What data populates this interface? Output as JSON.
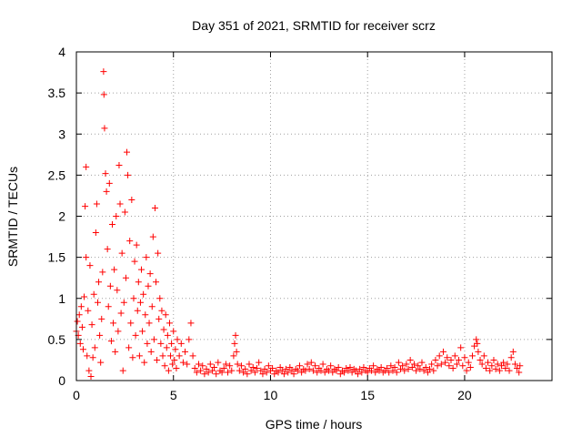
{
  "chart_data": {
    "type": "scatter",
    "title": "Day 351 of 2021, SRMTID for receiver scrz",
    "xlabel": "GPS time / hours",
    "ylabel": "SRMTID / TECUs",
    "xlim": [
      0,
      24.5
    ],
    "ylim": [
      0,
      4
    ],
    "grid": true,
    "marker": "+",
    "color": "#ff0000",
    "xticks": [
      0,
      5,
      10,
      15,
      20
    ],
    "xtick_labels": [
      "0",
      "5",
      "10",
      "15",
      "20"
    ],
    "yticks": [
      0,
      0.5,
      1,
      1.5,
      2,
      2.5,
      3,
      3.5,
      4
    ],
    "ytick_labels": [
      "0",
      "0.5",
      "1",
      "1.5",
      "2",
      "2.5",
      "3",
      "3.5",
      "4"
    ],
    "series": [
      {
        "name": "SRMTID",
        "points": [
          [
            0.0,
            0.6
          ],
          [
            0.05,
            0.72
          ],
          [
            0.1,
            0.55
          ],
          [
            0.15,
            0.8
          ],
          [
            0.2,
            0.45
          ],
          [
            0.25,
            0.9
          ],
          [
            0.3,
            0.65
          ],
          [
            0.35,
            0.38
          ],
          [
            0.4,
            1.02
          ],
          [
            0.45,
            2.12
          ],
          [
            0.5,
            2.6
          ],
          [
            0.5,
            1.5
          ],
          [
            0.55,
            0.3
          ],
          [
            0.6,
            0.85
          ],
          [
            0.65,
            0.12
          ],
          [
            0.7,
            1.4
          ],
          [
            0.75,
            0.05
          ],
          [
            0.8,
            0.68
          ],
          [
            0.85,
            0.28
          ],
          [
            0.9,
            1.05
          ],
          [
            0.95,
            0.4
          ],
          [
            1.0,
            1.8
          ],
          [
            1.05,
            2.15
          ],
          [
            1.1,
            0.95
          ],
          [
            1.15,
            1.2
          ],
          [
            1.2,
            0.55
          ],
          [
            1.25,
            0.22
          ],
          [
            1.3,
            0.75
          ],
          [
            1.35,
            1.32
          ],
          [
            1.4,
            3.76
          ],
          [
            1.42,
            3.48
          ],
          [
            1.45,
            3.07
          ],
          [
            1.5,
            2.52
          ],
          [
            1.55,
            2.3
          ],
          [
            1.6,
            1.6
          ],
          [
            1.65,
            0.9
          ],
          [
            1.7,
            2.4
          ],
          [
            1.75,
            1.15
          ],
          [
            1.8,
            0.48
          ],
          [
            1.85,
            1.9
          ],
          [
            1.9,
            0.7
          ],
          [
            1.95,
            1.35
          ],
          [
            2.0,
            0.35
          ],
          [
            2.05,
            2.0
          ],
          [
            2.1,
            1.1
          ],
          [
            2.15,
            0.6
          ],
          [
            2.2,
            2.62
          ],
          [
            2.25,
            2.15
          ],
          [
            2.3,
            0.82
          ],
          [
            2.35,
            1.55
          ],
          [
            2.4,
            0.12
          ],
          [
            2.45,
            0.95
          ],
          [
            2.5,
            2.05
          ],
          [
            2.55,
            1.25
          ],
          [
            2.6,
            2.78
          ],
          [
            2.65,
            2.5
          ],
          [
            2.7,
            0.4
          ],
          [
            2.75,
            1.7
          ],
          [
            2.8,
            0.7
          ],
          [
            2.85,
            2.2
          ],
          [
            2.9,
            0.28
          ],
          [
            2.95,
            1.0
          ],
          [
            3.0,
            1.45
          ],
          [
            3.05,
            0.55
          ],
          [
            3.1,
            1.65
          ],
          [
            3.15,
            0.85
          ],
          [
            3.2,
            1.2
          ],
          [
            3.25,
            0.3
          ],
          [
            3.3,
            0.95
          ],
          [
            3.35,
            1.35
          ],
          [
            3.4,
            0.6
          ],
          [
            3.45,
            1.05
          ],
          [
            3.5,
            0.22
          ],
          [
            3.55,
            0.8
          ],
          [
            3.6,
            1.5
          ],
          [
            3.65,
            0.45
          ],
          [
            3.7,
            1.15
          ],
          [
            3.75,
            0.7
          ],
          [
            3.8,
            1.3
          ],
          [
            3.85,
            0.35
          ],
          [
            3.9,
            0.9
          ],
          [
            3.95,
            1.75
          ],
          [
            4.0,
            0.5
          ],
          [
            4.05,
            2.1
          ],
          [
            4.1,
            1.2
          ],
          [
            4.15,
            0.25
          ],
          [
            4.2,
            1.55
          ],
          [
            4.25,
            0.75
          ],
          [
            4.3,
            1.0
          ],
          [
            4.35,
            0.45
          ],
          [
            4.4,
            0.85
          ],
          [
            4.45,
            0.3
          ],
          [
            4.5,
            0.62
          ],
          [
            4.55,
            0.18
          ],
          [
            4.6,
            0.8
          ],
          [
            4.65,
            0.4
          ],
          [
            4.7,
            0.55
          ],
          [
            4.75,
            0.12
          ],
          [
            4.8,
            0.7
          ],
          [
            4.85,
            0.3
          ],
          [
            4.9,
            0.45
          ],
          [
            4.95,
            0.2
          ],
          [
            5.0,
            0.6
          ],
          [
            5.05,
            0.25
          ],
          [
            5.1,
            0.38
          ],
          [
            5.15,
            0.15
          ],
          [
            5.2,
            0.5
          ],
          [
            5.3,
            0.3
          ],
          [
            5.4,
            0.45
          ],
          [
            5.5,
            0.22
          ],
          [
            5.6,
            0.35
          ],
          [
            5.7,
            0.2
          ],
          [
            5.8,
            0.5
          ],
          [
            5.9,
            0.7
          ],
          [
            6.0,
            0.3
          ],
          [
            6.1,
            0.15
          ],
          [
            6.2,
            0.1
          ],
          [
            6.3,
            0.2
          ],
          [
            6.4,
            0.12
          ],
          [
            6.5,
            0.18
          ],
          [
            6.6,
            0.08
          ],
          [
            6.7,
            0.14
          ],
          [
            6.8,
            0.1
          ],
          [
            6.9,
            0.2
          ],
          [
            7.0,
            0.12
          ],
          [
            7.1,
            0.16
          ],
          [
            7.2,
            0.08
          ],
          [
            7.3,
            0.22
          ],
          [
            7.4,
            0.12
          ],
          [
            7.5,
            0.1
          ],
          [
            7.6,
            0.15
          ],
          [
            7.7,
            0.2
          ],
          [
            7.8,
            0.1
          ],
          [
            7.9,
            0.18
          ],
          [
            8.0,
            0.12
          ],
          [
            8.1,
            0.3
          ],
          [
            8.15,
            0.45
          ],
          [
            8.2,
            0.55
          ],
          [
            8.25,
            0.35
          ],
          [
            8.3,
            0.2
          ],
          [
            8.4,
            0.12
          ],
          [
            8.5,
            0.18
          ],
          [
            8.6,
            0.1
          ],
          [
            8.7,
            0.14
          ],
          [
            8.8,
            0.08
          ],
          [
            8.9,
            0.2
          ],
          [
            9.0,
            0.12
          ],
          [
            9.1,
            0.16
          ],
          [
            9.2,
            0.1
          ],
          [
            9.3,
            0.15
          ],
          [
            9.4,
            0.22
          ],
          [
            9.5,
            0.12
          ],
          [
            9.6,
            0.08
          ],
          [
            9.7,
            0.14
          ],
          [
            9.8,
            0.1
          ],
          [
            9.9,
            0.18
          ],
          [
            10.0,
            0.12
          ],
          [
            10.1,
            0.15
          ],
          [
            10.2,
            0.08
          ],
          [
            10.3,
            0.12
          ],
          [
            10.4,
            0.1
          ],
          [
            10.5,
            0.16
          ],
          [
            10.6,
            0.12
          ],
          [
            10.7,
            0.08
          ],
          [
            10.8,
            0.14
          ],
          [
            10.9,
            0.1
          ],
          [
            11.0,
            0.16
          ],
          [
            11.1,
            0.12
          ],
          [
            11.2,
            0.08
          ],
          [
            11.3,
            0.14
          ],
          [
            11.4,
            0.12
          ],
          [
            11.5,
            0.18
          ],
          [
            11.6,
            0.1
          ],
          [
            11.7,
            0.14
          ],
          [
            11.8,
            0.12
          ],
          [
            11.9,
            0.2
          ],
          [
            12.0,
            0.14
          ],
          [
            12.1,
            0.22
          ],
          [
            12.2,
            0.12
          ],
          [
            12.3,
            0.18
          ],
          [
            12.4,
            0.1
          ],
          [
            12.5,
            0.15
          ],
          [
            12.6,
            0.12
          ],
          [
            12.7,
            0.2
          ],
          [
            12.8,
            0.1
          ],
          [
            12.9,
            0.14
          ],
          [
            13.0,
            0.12
          ],
          [
            13.1,
            0.18
          ],
          [
            13.2,
            0.1
          ],
          [
            13.3,
            0.14
          ],
          [
            13.4,
            0.12
          ],
          [
            13.5,
            0.16
          ],
          [
            13.6,
            0.08
          ],
          [
            13.7,
            0.12
          ],
          [
            13.8,
            0.1
          ],
          [
            13.9,
            0.15
          ],
          [
            14.0,
            0.12
          ],
          [
            14.1,
            0.16
          ],
          [
            14.2,
            0.1
          ],
          [
            14.3,
            0.14
          ],
          [
            14.4,
            0.12
          ],
          [
            14.5,
            0.08
          ],
          [
            14.6,
            0.14
          ],
          [
            14.7,
            0.1
          ],
          [
            14.8,
            0.16
          ],
          [
            14.9,
            0.12
          ],
          [
            15.0,
            0.1
          ],
          [
            15.1,
            0.15
          ],
          [
            15.2,
            0.12
          ],
          [
            15.3,
            0.18
          ],
          [
            15.4,
            0.1
          ],
          [
            15.5,
            0.14
          ],
          [
            15.6,
            0.12
          ],
          [
            15.7,
            0.16
          ],
          [
            15.8,
            0.1
          ],
          [
            15.9,
            0.12
          ],
          [
            16.0,
            0.15
          ],
          [
            16.1,
            0.1
          ],
          [
            16.2,
            0.18
          ],
          [
            16.3,
            0.12
          ],
          [
            16.4,
            0.16
          ],
          [
            16.5,
            0.1
          ],
          [
            16.6,
            0.22
          ],
          [
            16.7,
            0.14
          ],
          [
            16.8,
            0.18
          ],
          [
            16.9,
            0.12
          ],
          [
            17.0,
            0.2
          ],
          [
            17.1,
            0.14
          ],
          [
            17.2,
            0.25
          ],
          [
            17.3,
            0.16
          ],
          [
            17.4,
            0.2
          ],
          [
            17.5,
            0.12
          ],
          [
            17.6,
            0.18
          ],
          [
            17.7,
            0.14
          ],
          [
            17.8,
            0.22
          ],
          [
            17.9,
            0.12
          ],
          [
            18.0,
            0.16
          ],
          [
            18.1,
            0.1
          ],
          [
            18.2,
            0.14
          ],
          [
            18.3,
            0.2
          ],
          [
            18.4,
            0.12
          ],
          [
            18.5,
            0.25
          ],
          [
            18.6,
            0.18
          ],
          [
            18.7,
            0.3
          ],
          [
            18.8,
            0.2
          ],
          [
            18.9,
            0.35
          ],
          [
            19.0,
            0.22
          ],
          [
            19.1,
            0.28
          ],
          [
            19.2,
            0.18
          ],
          [
            19.3,
            0.25
          ],
          [
            19.4,
            0.15
          ],
          [
            19.5,
            0.3
          ],
          [
            19.6,
            0.2
          ],
          [
            19.7,
            0.25
          ],
          [
            19.8,
            0.4
          ],
          [
            19.9,
            0.18
          ],
          [
            20.0,
            0.28
          ],
          [
            20.1,
            0.12
          ],
          [
            20.2,
            0.22
          ],
          [
            20.3,
            0.16
          ],
          [
            20.4,
            0.3
          ],
          [
            20.5,
            0.42
          ],
          [
            20.6,
            0.5
          ],
          [
            20.65,
            0.45
          ],
          [
            20.7,
            0.35
          ],
          [
            20.8,
            0.25
          ],
          [
            20.9,
            0.2
          ],
          [
            21.0,
            0.3
          ],
          [
            21.1,
            0.15
          ],
          [
            21.2,
            0.22
          ],
          [
            21.3,
            0.12
          ],
          [
            21.4,
            0.18
          ],
          [
            21.5,
            0.25
          ],
          [
            21.6,
            0.14
          ],
          [
            21.7,
            0.2
          ],
          [
            21.8,
            0.12
          ],
          [
            21.9,
            0.18
          ],
          [
            22.0,
            0.22
          ],
          [
            22.1,
            0.15
          ],
          [
            22.2,
            0.2
          ],
          [
            22.3,
            0.12
          ],
          [
            22.4,
            0.28
          ],
          [
            22.5,
            0.35
          ],
          [
            22.6,
            0.2
          ],
          [
            22.7,
            0.15
          ],
          [
            22.8,
            0.1
          ],
          [
            22.85,
            0.18
          ]
        ]
      }
    ]
  }
}
